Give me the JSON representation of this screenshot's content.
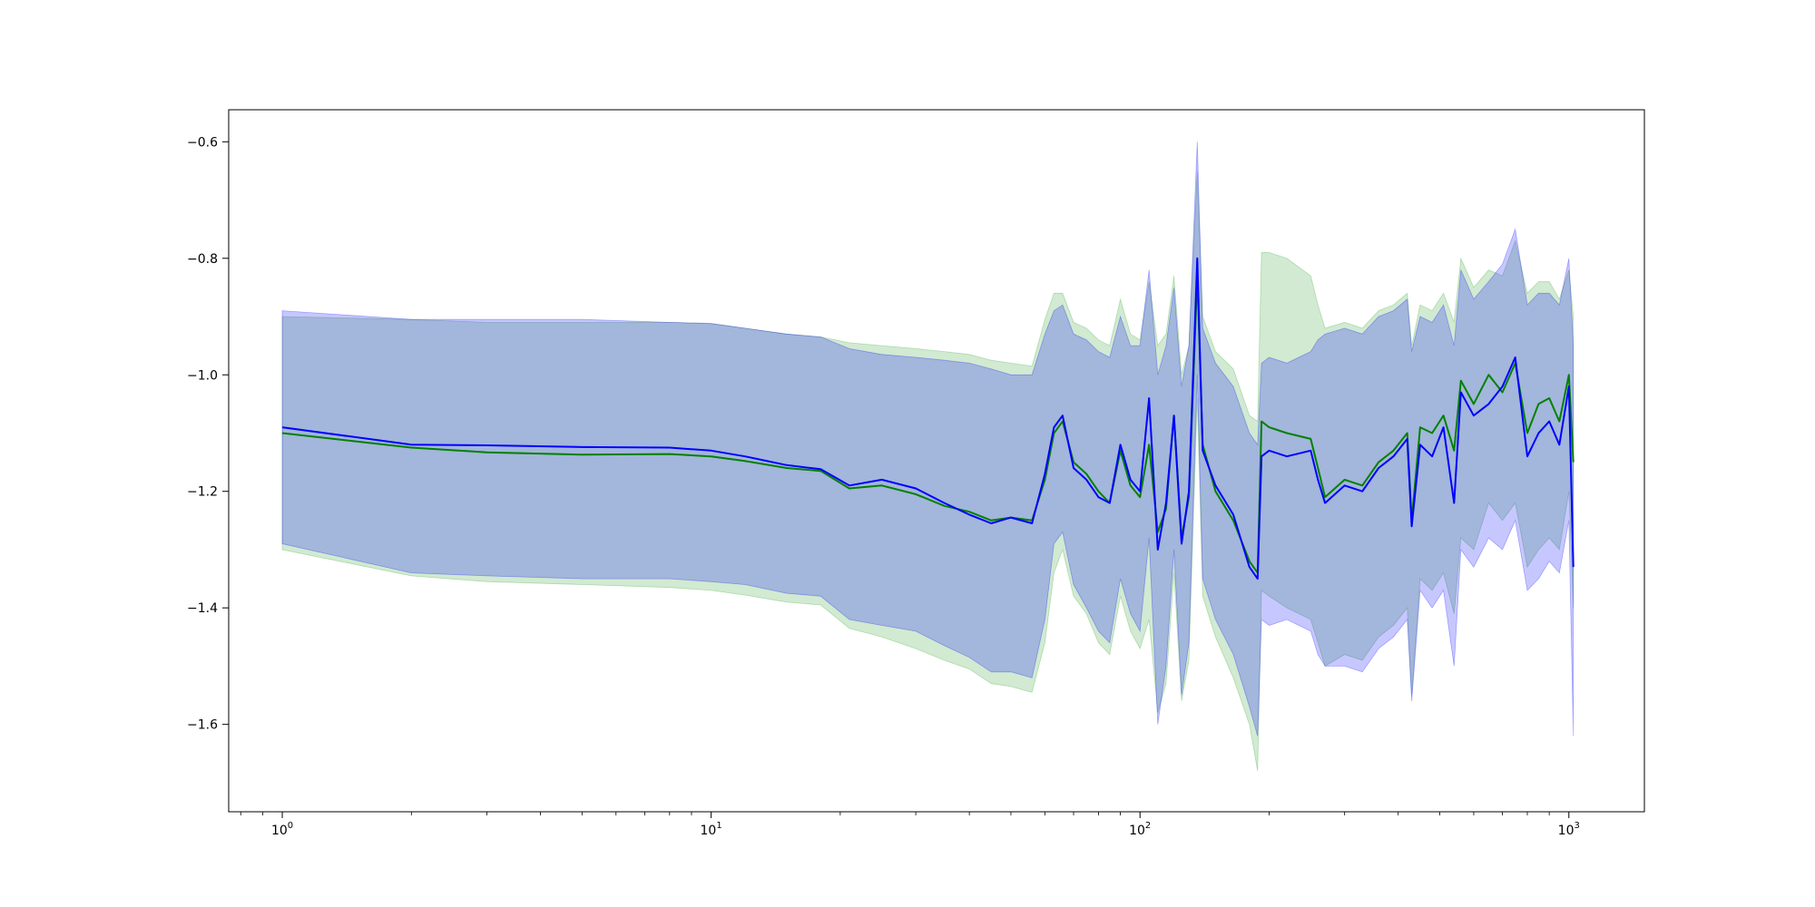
{
  "chart_data": {
    "type": "line",
    "title": "",
    "xlabel": "",
    "ylabel": "",
    "xscale": "log",
    "xlim": [
      0.75,
      1500
    ],
    "ylim": [
      -1.75,
      -0.545
    ],
    "grid": false,
    "legend": "none",
    "x_ticks": [
      {
        "base": "10",
        "exp": "0",
        "value": 1
      },
      {
        "base": "10",
        "exp": "1",
        "value": 10
      },
      {
        "base": "10",
        "exp": "2",
        "value": 100
      },
      {
        "base": "10",
        "exp": "3",
        "value": 1000
      }
    ],
    "y_ticks": [
      {
        "label": "−0.6",
        "value": -0.6
      },
      {
        "label": "−0.8",
        "value": -0.8
      },
      {
        "label": "−1.0",
        "value": -1.0
      },
      {
        "label": "−1.2",
        "value": -1.2
      },
      {
        "label": "−1.4",
        "value": -1.4
      },
      {
        "label": "−1.6",
        "value": -1.6
      }
    ],
    "series": [
      {
        "color": "#008000",
        "band_color": "#2ca02c",
        "points": [
          [
            1,
            -1.1,
            -0.9,
            -1.3
          ],
          [
            2,
            -1.125,
            -0.905,
            -1.345
          ],
          [
            3,
            -1.133,
            -0.91,
            -1.355
          ],
          [
            5,
            -1.137,
            -0.91,
            -1.36
          ],
          [
            8,
            -1.136,
            -0.91,
            -1.365
          ],
          [
            10,
            -1.14,
            -0.912,
            -1.37
          ],
          [
            12,
            -1.148,
            -0.92,
            -1.378
          ],
          [
            15,
            -1.16,
            -0.93,
            -1.39
          ],
          [
            18,
            -1.165,
            -0.935,
            -1.395
          ],
          [
            21,
            -1.195,
            -0.945,
            -1.435
          ],
          [
            25,
            -1.19,
            -0.95,
            -1.45
          ],
          [
            30,
            -1.205,
            -0.955,
            -1.47
          ],
          [
            35,
            -1.225,
            -0.96,
            -1.49
          ],
          [
            40,
            -1.235,
            -0.965,
            -1.505
          ],
          [
            45,
            -1.25,
            -0.975,
            -1.53
          ],
          [
            50,
            -1.245,
            -0.98,
            -1.535
          ],
          [
            56,
            -1.25,
            -0.985,
            -1.545
          ],
          [
            60,
            -1.18,
            -0.905,
            -1.46
          ],
          [
            63,
            -1.1,
            -0.86,
            -1.34
          ],
          [
            66,
            -1.08,
            -0.86,
            -1.3
          ],
          [
            70,
            -1.15,
            -0.91,
            -1.38
          ],
          [
            75,
            -1.17,
            -0.92,
            -1.41
          ],
          [
            80,
            -1.2,
            -0.94,
            -1.46
          ],
          [
            85,
            -1.22,
            -0.95,
            -1.48
          ],
          [
            90,
            -1.13,
            -0.87,
            -1.38
          ],
          [
            95,
            -1.19,
            -0.93,
            -1.44
          ],
          [
            100,
            -1.21,
            -0.94,
            -1.47
          ],
          [
            105,
            -1.12,
            -0.84,
            -1.42
          ],
          [
            110,
            -1.27,
            -0.95,
            -1.58
          ],
          [
            115,
            -1.23,
            -0.93,
            -1.53
          ],
          [
            120,
            -1.07,
            -0.83,
            -1.34
          ],
          [
            125,
            -1.28,
            -1.0,
            -1.56
          ],
          [
            130,
            -1.21,
            -0.95,
            -1.49
          ],
          [
            136,
            -0.83,
            -0.65,
            -1.04
          ],
          [
            140,
            -1.12,
            -0.9,
            -1.38
          ],
          [
            150,
            -1.2,
            -0.96,
            -1.45
          ],
          [
            165,
            -1.25,
            -0.99,
            -1.52
          ],
          [
            180,
            -1.32,
            -1.07,
            -1.6
          ],
          [
            188,
            -1.34,
            -1.08,
            -1.68
          ],
          [
            192,
            -1.08,
            -0.79,
            -1.37
          ],
          [
            200,
            -1.09,
            -0.79,
            -1.38
          ],
          [
            220,
            -1.1,
            -0.8,
            -1.4
          ],
          [
            250,
            -1.11,
            -0.83,
            -1.42
          ],
          [
            260,
            -1.16,
            -0.88,
            -1.46
          ],
          [
            270,
            -1.21,
            -0.92,
            -1.5
          ],
          [
            300,
            -1.18,
            -0.91,
            -1.48
          ],
          [
            330,
            -1.19,
            -0.92,
            -1.49
          ],
          [
            360,
            -1.15,
            -0.89,
            -1.45
          ],
          [
            390,
            -1.13,
            -0.88,
            -1.43
          ],
          [
            420,
            -1.1,
            -0.86,
            -1.4
          ],
          [
            430,
            -1.25,
            -0.95,
            -1.55
          ],
          [
            450,
            -1.09,
            -0.88,
            -1.35
          ],
          [
            480,
            -1.1,
            -0.89,
            -1.37
          ],
          [
            510,
            -1.07,
            -0.86,
            -1.34
          ],
          [
            540,
            -1.13,
            -0.91,
            -1.41
          ],
          [
            560,
            -1.01,
            -0.8,
            -1.28
          ],
          [
            600,
            -1.05,
            -0.85,
            -1.3
          ],
          [
            650,
            -1.0,
            -0.82,
            -1.22
          ],
          [
            700,
            -1.03,
            -0.83,
            -1.25
          ],
          [
            750,
            -0.98,
            -0.77,
            -1.22
          ],
          [
            800,
            -1.1,
            -0.86,
            -1.33
          ],
          [
            850,
            -1.05,
            -0.84,
            -1.3
          ],
          [
            900,
            -1.04,
            -0.84,
            -1.28
          ],
          [
            950,
            -1.08,
            -0.87,
            -1.3
          ],
          [
            1000,
            -1.0,
            -0.82,
            -1.2
          ],
          [
            1024,
            -1.15,
            -0.9,
            -1.4
          ]
        ]
      },
      {
        "color": "#0000ff",
        "band_color": "#0000ff",
        "points": [
          [
            1,
            -1.09,
            -0.89,
            -1.29
          ],
          [
            2,
            -1.12,
            -0.905,
            -1.34
          ],
          [
            3,
            -1.121,
            -0.905,
            -1.345
          ],
          [
            5,
            -1.124,
            -0.905,
            -1.35
          ],
          [
            8,
            -1.125,
            -0.91,
            -1.35
          ],
          [
            10,
            -1.13,
            -0.912,
            -1.355
          ],
          [
            12,
            -1.14,
            -0.92,
            -1.36
          ],
          [
            15,
            -1.155,
            -0.93,
            -1.375
          ],
          [
            18,
            -1.162,
            -0.935,
            -1.38
          ],
          [
            21,
            -1.19,
            -0.955,
            -1.42
          ],
          [
            25,
            -1.18,
            -0.965,
            -1.43
          ],
          [
            30,
            -1.195,
            -0.97,
            -1.44
          ],
          [
            35,
            -1.22,
            -0.975,
            -1.465
          ],
          [
            40,
            -1.24,
            -0.98,
            -1.485
          ],
          [
            45,
            -1.255,
            -0.99,
            -1.51
          ],
          [
            50,
            -1.245,
            -1.0,
            -1.51
          ],
          [
            56,
            -1.255,
            -1.0,
            -1.52
          ],
          [
            60,
            -1.17,
            -0.93,
            -1.42
          ],
          [
            63,
            -1.09,
            -0.89,
            -1.29
          ],
          [
            66,
            -1.07,
            -0.88,
            -1.27
          ],
          [
            70,
            -1.16,
            -0.93,
            -1.36
          ],
          [
            75,
            -1.18,
            -0.94,
            -1.4
          ],
          [
            80,
            -1.21,
            -0.96,
            -1.44
          ],
          [
            85,
            -1.22,
            -0.97,
            -1.46
          ],
          [
            90,
            -1.12,
            -0.9,
            -1.35
          ],
          [
            95,
            -1.18,
            -0.95,
            -1.41
          ],
          [
            100,
            -1.2,
            -0.95,
            -1.44
          ],
          [
            105,
            -1.04,
            -0.82,
            -1.28
          ],
          [
            110,
            -1.3,
            -1.0,
            -1.6
          ],
          [
            115,
            -1.22,
            -0.95,
            -1.5
          ],
          [
            120,
            -1.07,
            -0.85,
            -1.3
          ],
          [
            125,
            -1.29,
            -1.02,
            -1.55
          ],
          [
            130,
            -1.2,
            -0.95,
            -1.46
          ],
          [
            136,
            -0.8,
            -0.6,
            -1.0
          ],
          [
            140,
            -1.13,
            -0.92,
            -1.35
          ],
          [
            150,
            -1.19,
            -0.98,
            -1.42
          ],
          [
            165,
            -1.24,
            -1.02,
            -1.48
          ],
          [
            180,
            -1.33,
            -1.1,
            -1.57
          ],
          [
            188,
            -1.35,
            -1.12,
            -1.62
          ],
          [
            192,
            -1.14,
            -0.98,
            -1.42
          ],
          [
            200,
            -1.13,
            -0.97,
            -1.43
          ],
          [
            220,
            -1.14,
            -0.98,
            -1.42
          ],
          [
            250,
            -1.13,
            -0.96,
            -1.44
          ],
          [
            260,
            -1.18,
            -0.94,
            -1.48
          ],
          [
            270,
            -1.22,
            -0.93,
            -1.5
          ],
          [
            300,
            -1.19,
            -0.92,
            -1.5
          ],
          [
            330,
            -1.2,
            -0.93,
            -1.51
          ],
          [
            360,
            -1.16,
            -0.9,
            -1.47
          ],
          [
            390,
            -1.14,
            -0.89,
            -1.45
          ],
          [
            420,
            -1.11,
            -0.87,
            -1.42
          ],
          [
            430,
            -1.26,
            -0.96,
            -1.56
          ],
          [
            450,
            -1.12,
            -0.9,
            -1.37
          ],
          [
            480,
            -1.14,
            -0.91,
            -1.4
          ],
          [
            510,
            -1.09,
            -0.88,
            -1.37
          ],
          [
            540,
            -1.22,
            -0.95,
            -1.5
          ],
          [
            560,
            -1.03,
            -0.82,
            -1.3
          ],
          [
            600,
            -1.07,
            -0.87,
            -1.33
          ],
          [
            650,
            -1.05,
            -0.84,
            -1.28
          ],
          [
            700,
            -1.02,
            -0.81,
            -1.3
          ],
          [
            750,
            -0.97,
            -0.75,
            -1.25
          ],
          [
            800,
            -1.14,
            -0.88,
            -1.37
          ],
          [
            850,
            -1.1,
            -0.86,
            -1.35
          ],
          [
            900,
            -1.08,
            -0.86,
            -1.32
          ],
          [
            950,
            -1.12,
            -0.88,
            -1.34
          ],
          [
            1000,
            -1.02,
            -0.8,
            -1.25
          ],
          [
            1024,
            -1.33,
            -0.95,
            -1.62
          ]
        ]
      }
    ]
  }
}
